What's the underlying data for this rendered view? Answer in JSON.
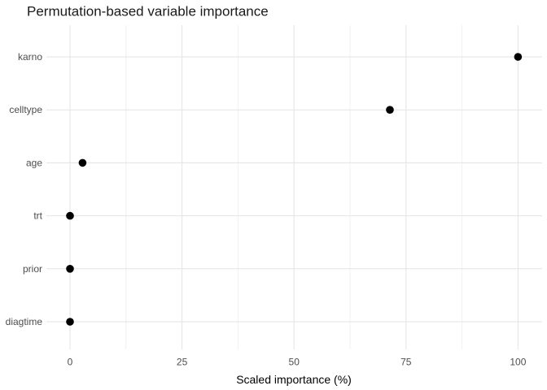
{
  "chart_data": {
    "type": "scatter",
    "title": "Permutation-based variable importance",
    "xlabel": "Scaled importance (%)",
    "ylabel": "",
    "categories": [
      "karno",
      "celltype",
      "age",
      "trt",
      "prior",
      "diagtime"
    ],
    "values": [
      100,
      71.4,
      2.8,
      0,
      0,
      0
    ],
    "x_major_ticks": [
      0,
      25,
      50,
      75,
      100
    ],
    "x_tick_labels": [
      "0",
      "25",
      "50",
      "75",
      "100"
    ],
    "x_minor_ticks": [
      12.5,
      37.5,
      62.5,
      87.5
    ],
    "xlim": [
      -5.3,
      105.4
    ],
    "grid": true,
    "legend": "none",
    "colors": {
      "point": "#000000",
      "major_grid": "#e3e3e3",
      "minor_grid": "#f0f0f0",
      "axis_text": "#4d4d4d",
      "title_text": "#1a1a1a",
      "background": "#ffffff"
    }
  }
}
